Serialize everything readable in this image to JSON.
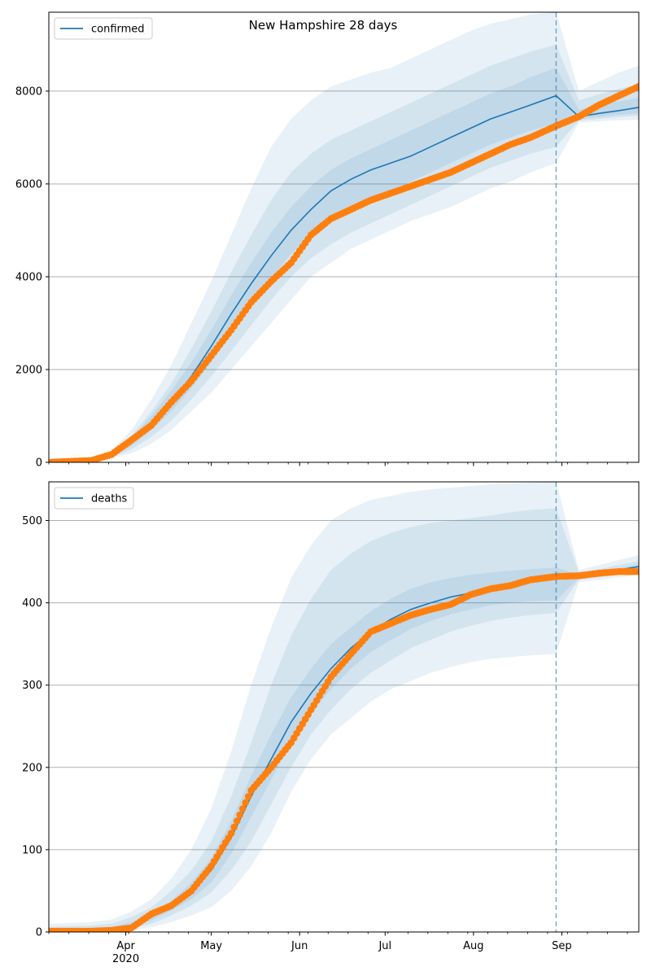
{
  "title": "New Hampshire 28 days",
  "x_axis": {
    "tick_labels": [
      "Apr\n2020",
      "May",
      "Jun",
      "Jul",
      "Aug",
      "Sep"
    ],
    "tick_dates": [
      "2020-04-01",
      "2020-05-01",
      "2020-06-01",
      "2020-07-01",
      "2020-08-01",
      "2020-09-01"
    ],
    "range": [
      "2020-03-05",
      "2020-09-28"
    ]
  },
  "forecast_start": "2020-08-30",
  "colors": {
    "model": "#1f77b4",
    "observed": "#ff7f0e",
    "band": "#1f77b4",
    "grid": "#b0b0b0",
    "forecast_line": "#1f77b4"
  },
  "chart_data": [
    {
      "type": "line",
      "legend": "confirmed",
      "legend_position": "top-left",
      "grid": "horizontal",
      "ylim": [
        0,
        9700
      ],
      "yticks": [
        0,
        2000,
        4000,
        6000,
        8000
      ],
      "ytick_labels": [
        "0",
        "2000",
        "4000",
        "6000",
        "8000"
      ],
      "model": {
        "dates": [
          "2020-03-05",
          "2020-03-20",
          "2020-03-27",
          "2020-04-03",
          "2020-04-10",
          "2020-04-17",
          "2020-04-24",
          "2020-05-01",
          "2020-05-08",
          "2020-05-15",
          "2020-05-22",
          "2020-05-29",
          "2020-06-05",
          "2020-06-12",
          "2020-06-19",
          "2020-06-26",
          "2020-07-03",
          "2020-07-10",
          "2020-07-17",
          "2020-07-24",
          "2020-07-31",
          "2020-08-07",
          "2020-08-14",
          "2020-08-21",
          "2020-08-30",
          "2020-09-07",
          "2020-09-14",
          "2020-09-21",
          "2020-09-28"
        ],
        "values": [
          10,
          40,
          150,
          450,
          850,
          1300,
          1850,
          2500,
          3200,
          3850,
          4450,
          5000,
          5450,
          5850,
          6100,
          6300,
          6450,
          6600,
          6800,
          7000,
          7200,
          7400,
          7550,
          7700,
          7900,
          7450,
          7520,
          7580,
          7650
        ],
        "bands": [
          {
            "lower": [
              0,
              20,
              80,
              200,
              400,
              700,
              1100,
              1500,
              2000,
              2500,
              3000,
              3500,
              4000,
              4300,
              4600,
              4800,
              5000,
              5200,
              5350,
              5500,
              5700,
              5900,
              6050,
              6250,
              6450,
              7320,
              7350,
              7370,
              7380
            ],
            "upper": [
              20,
              80,
              250,
              700,
              1350,
              2100,
              3000,
              3900,
              4900,
              5900,
              6800,
              7400,
              7800,
              8100,
              8250,
              8400,
              8500,
              8700,
              8900,
              9100,
              9300,
              9450,
              9550,
              9650,
              9700,
              8000,
              8200,
              8400,
              8550
            ]
          },
          {
            "lower": [
              0,
              25,
              100,
              280,
              550,
              900,
              1350,
              1850,
              2400,
              2950,
              3500,
              4000,
              4400,
              4700,
              4950,
              5150,
              5350,
              5550,
              5750,
              5950,
              6150,
              6350,
              6500,
              6650,
              6800,
              7360,
              7400,
              7440,
              7470
            ],
            "upper": [
              15,
              60,
              200,
              580,
              1100,
              1700,
              2450,
              3250,
              4100,
              4900,
              5650,
              6250,
              6650,
              6950,
              7150,
              7350,
              7550,
              7750,
              7950,
              8150,
              8350,
              8550,
              8700,
              8850,
              9000,
              7800,
              7930,
              8050,
              8150
            ]
          },
          {
            "lower": [
              0,
              30,
              120,
              350,
              700,
              1100,
              1600,
              2150,
              2750,
              3350,
              3950,
              4500,
              4900,
              5200,
              5450,
              5650,
              5850,
              6050,
              6250,
              6450,
              6650,
              6850,
              7000,
              7150,
              7300,
              7400,
              7440,
              7490,
              7520
            ],
            "upper": [
              12,
              50,
              180,
              530,
              1000,
              1550,
              2150,
              2850,
              3600,
              4300,
              4950,
              5500,
              5950,
              6300,
              6550,
              6750,
              6950,
              7150,
              7350,
              7550,
              7750,
              7950,
              8100,
              8300,
              8500,
              7600,
              7700,
              7780,
              7850
            ]
          }
        ]
      },
      "observed": {
        "dates": [
          "2020-03-05",
          "2020-03-20",
          "2020-03-27",
          "2020-04-03",
          "2020-04-10",
          "2020-04-17",
          "2020-04-24",
          "2020-05-01",
          "2020-05-08",
          "2020-05-15",
          "2020-05-22",
          "2020-05-29",
          "2020-06-05",
          "2020-06-12",
          "2020-06-19",
          "2020-06-26",
          "2020-07-03",
          "2020-07-10",
          "2020-07-17",
          "2020-07-24",
          "2020-07-31",
          "2020-08-07",
          "2020-08-14",
          "2020-08-21",
          "2020-08-30",
          "2020-09-07",
          "2020-09-14",
          "2020-09-21",
          "2020-09-28"
        ],
        "values": [
          0,
          40,
          170,
          480,
          800,
          1300,
          1750,
          2300,
          2850,
          3450,
          3900,
          4300,
          4900,
          5250,
          5450,
          5650,
          5800,
          5950,
          6100,
          6250,
          6450,
          6650,
          6850,
          7000,
          7250,
          7450,
          7700,
          7900,
          8100
        ]
      }
    },
    {
      "type": "line",
      "legend": "deaths",
      "legend_position": "top-left",
      "grid": "horizontal",
      "ylim": [
        0,
        547
      ],
      "yticks": [
        0,
        100,
        200,
        300,
        400,
        500
      ],
      "ytick_labels": [
        "0",
        "100",
        "200",
        "300",
        "400",
        "500"
      ],
      "model": {
        "dates": [
          "2020-03-05",
          "2020-03-20",
          "2020-03-27",
          "2020-04-03",
          "2020-04-10",
          "2020-04-17",
          "2020-04-24",
          "2020-05-01",
          "2020-05-08",
          "2020-05-15",
          "2020-05-22",
          "2020-05-29",
          "2020-06-05",
          "2020-06-12",
          "2020-06-19",
          "2020-06-26",
          "2020-07-03",
          "2020-07-10",
          "2020-07-17",
          "2020-07-24",
          "2020-07-31",
          "2020-08-07",
          "2020-08-14",
          "2020-08-21",
          "2020-08-30",
          "2020-09-07",
          "2020-09-14",
          "2020-09-21",
          "2020-09-28"
        ],
        "values": [
          0,
          1,
          3,
          8,
          18,
          32,
          50,
          75,
          115,
          165,
          210,
          255,
          290,
          320,
          345,
          365,
          380,
          392,
          400,
          407,
          412,
          416,
          420,
          425,
          432,
          432,
          436,
          440,
          444
        ],
        "bands": [
          {
            "lower": [
              0,
              0,
              0,
              2,
              6,
              12,
              20,
              30,
              50,
              80,
              120,
              170,
              210,
              240,
              260,
              280,
              295,
              305,
              315,
              322,
              328,
              332,
              334,
              336,
              338,
              425,
              428,
              431,
              434
            ],
            "upper": [
              10,
              12,
              15,
              25,
              40,
              65,
              100,
              150,
              220,
              300,
              370,
              430,
              470,
              500,
              515,
              525,
              530,
              535,
              538,
              540,
              542,
              544,
              545,
              546,
              547,
              440,
              446,
              452,
              458
            ]
          },
          {
            "lower": [
              0,
              0,
              1,
              4,
              10,
              20,
              32,
              48,
              75,
              110,
              155,
              200,
              240,
              270,
              295,
              315,
              330,
              345,
              355,
              365,
              372,
              378,
              382,
              385,
              388,
              428,
              431,
              435,
              438
            ],
            "upper": [
              6,
              8,
              10,
              18,
              30,
              50,
              75,
              110,
              165,
              230,
              300,
              360,
              405,
              440,
              460,
              475,
              485,
              492,
              497,
              500,
              503,
              506,
              510,
              513,
              515,
              437,
              441,
              446,
              451
            ]
          },
          {
            "lower": [
              0,
              0,
              2,
              6,
              14,
              26,
              40,
              60,
              95,
              140,
              185,
              230,
              265,
              295,
              320,
              340,
              355,
              368,
              378,
              386,
              392,
              397,
              400,
              402,
              403,
              430,
              433,
              437,
              441
            ],
            "upper": [
              3,
              5,
              6,
              12,
              22,
              38,
              60,
              90,
              135,
              190,
              240,
              285,
              320,
              350,
              370,
              390,
              405,
              417,
              425,
              430,
              434,
              437,
              439,
              441,
              443,
              434,
              438,
              442,
              447
            ]
          }
        ]
      },
      "observed": {
        "dates": [
          "2020-03-05",
          "2020-03-20",
          "2020-03-27",
          "2020-04-03",
          "2020-04-10",
          "2020-04-17",
          "2020-04-24",
          "2020-05-01",
          "2020-05-08",
          "2020-05-15",
          "2020-05-22",
          "2020-05-29",
          "2020-06-05",
          "2020-06-12",
          "2020-06-19",
          "2020-06-26",
          "2020-07-03",
          "2020-07-10",
          "2020-07-17",
          "2020-07-24",
          "2020-07-31",
          "2020-08-07",
          "2020-08-14",
          "2020-08-21",
          "2020-08-30",
          "2020-09-07",
          "2020-09-14",
          "2020-09-21",
          "2020-09-28"
        ],
        "values": [
          1,
          1,
          2,
          5,
          22,
          32,
          50,
          80,
          120,
          172,
          200,
          230,
          270,
          310,
          338,
          365,
          375,
          385,
          392,
          398,
          410,
          417,
          421,
          428,
          432,
          433,
          436,
          438,
          438
        ]
      }
    }
  ]
}
